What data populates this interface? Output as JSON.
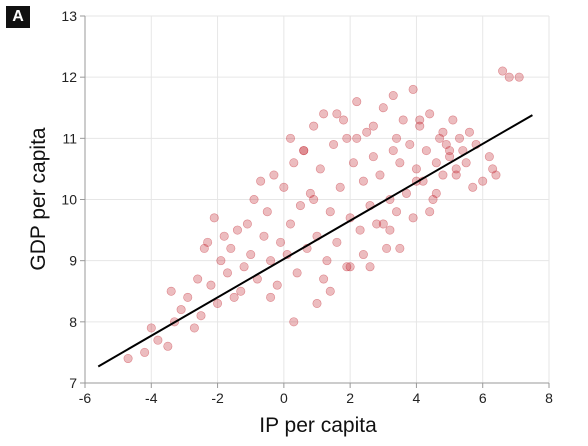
{
  "panel_label": "A",
  "chart_data": {
    "type": "scatter",
    "title": "",
    "xlabel": "IP per capita",
    "ylabel": "GDP per capita",
    "xlim": [
      -6,
      8
    ],
    "ylim": [
      7,
      13
    ],
    "xticks": [
      -6,
      -4,
      -2,
      0,
      2,
      4,
      6,
      8
    ],
    "yticks": [
      7,
      8,
      9,
      10,
      11,
      12,
      13
    ],
    "grid": true,
    "colors": {
      "points": "#c0202a",
      "fit_line": "#000000",
      "grid": "#e6e6e6",
      "axis": "#999999"
    },
    "fit_line": {
      "x": [
        -5.6,
        7.5
      ],
      "y": [
        7.27,
        11.38
      ]
    },
    "series": [
      {
        "x": [
          -4.7,
          -4.2,
          -4.0,
          -3.8,
          -3.4,
          -3.5,
          -3.3,
          -3.1,
          -2.9,
          -2.7,
          -2.6,
          -2.5,
          -2.4,
          -2.2,
          -2.1,
          -2.0,
          -1.9,
          -1.7,
          -1.6,
          -1.5,
          -1.4,
          -1.2,
          -1.1,
          -1.0,
          -0.9,
          -0.8,
          -0.6,
          -0.5,
          -0.4,
          -0.3,
          -0.2,
          -0.1,
          0.0,
          0.1,
          0.2,
          0.3,
          0.4,
          0.5,
          0.6,
          0.7,
          0.8,
          0.9,
          1.0,
          1.1,
          1.2,
          1.3,
          1.4,
          1.5,
          1.6,
          1.7,
          1.8,
          1.9,
          2.0,
          2.1,
          2.2,
          2.3,
          2.4,
          2.5,
          2.6,
          2.7,
          2.8,
          2.9,
          3.0,
          3.1,
          3.2,
          3.3,
          3.4,
          3.5,
          3.6,
          3.7,
          3.8,
          3.9,
          4.0,
          4.1,
          4.2,
          4.3,
          4.4,
          4.5,
          4.6,
          4.7,
          4.8,
          4.9,
          5.0,
          5.1,
          5.2,
          5.3,
          5.4,
          5.5,
          5.6,
          5.8,
          6.0,
          6.2,
          6.4,
          6.6,
          6.8,
          7.1,
          -2.3,
          -1.3,
          0.9,
          1.6,
          2.2,
          3.3,
          3.9,
          -0.4,
          0.3,
          1.2,
          2.6,
          3.5,
          4.4,
          5.2,
          -1.8,
          -0.7,
          0.6,
          1.9,
          2.7,
          3.4,
          4.1,
          4.8,
          5.7,
          6.3,
          0.2,
          1.0,
          2.0,
          3.0,
          4.0,
          5.0,
          1.4,
          2.4,
          3.2,
          4.6
        ],
        "y": [
          7.4,
          7.5,
          7.9,
          7.7,
          8.5,
          7.6,
          8.0,
          8.2,
          8.4,
          7.9,
          8.7,
          8.1,
          9.2,
          8.6,
          9.7,
          8.3,
          9.0,
          8.8,
          9.2,
          8.4,
          9.5,
          8.9,
          9.6,
          9.1,
          10.0,
          8.7,
          9.4,
          9.8,
          9.0,
          10.4,
          8.6,
          9.3,
          10.2,
          9.1,
          9.6,
          10.6,
          8.8,
          9.9,
          10.8,
          9.2,
          10.1,
          11.2,
          9.4,
          10.5,
          11.4,
          9.0,
          9.8,
          10.9,
          9.3,
          10.2,
          11.3,
          8.9,
          9.7,
          10.6,
          11.0,
          9.5,
          10.3,
          11.1,
          9.9,
          10.7,
          9.6,
          10.4,
          11.5,
          9.2,
          10.0,
          10.8,
          9.8,
          10.6,
          11.3,
          10.1,
          10.9,
          9.7,
          10.5,
          11.2,
          10.3,
          10.8,
          11.4,
          10.0,
          10.6,
          11.0,
          10.4,
          10.9,
          10.7,
          11.3,
          10.5,
          11.0,
          10.8,
          10.6,
          11.1,
          10.9,
          10.3,
          10.7,
          10.4,
          12.1,
          12.0,
          12.0,
          9.3,
          8.5,
          10.0,
          11.4,
          11.6,
          11.7,
          11.8,
          8.4,
          8.0,
          8.7,
          8.9,
          9.2,
          9.8,
          10.4,
          9.4,
          10.3,
          10.8,
          11.0,
          11.2,
          11.0,
          11.3,
          11.1,
          10.2,
          10.5,
          11.0,
          8.3,
          8.9,
          9.6,
          10.3,
          10.8,
          8.5,
          9.1,
          9.5,
          10.1
        ]
      }
    ]
  }
}
